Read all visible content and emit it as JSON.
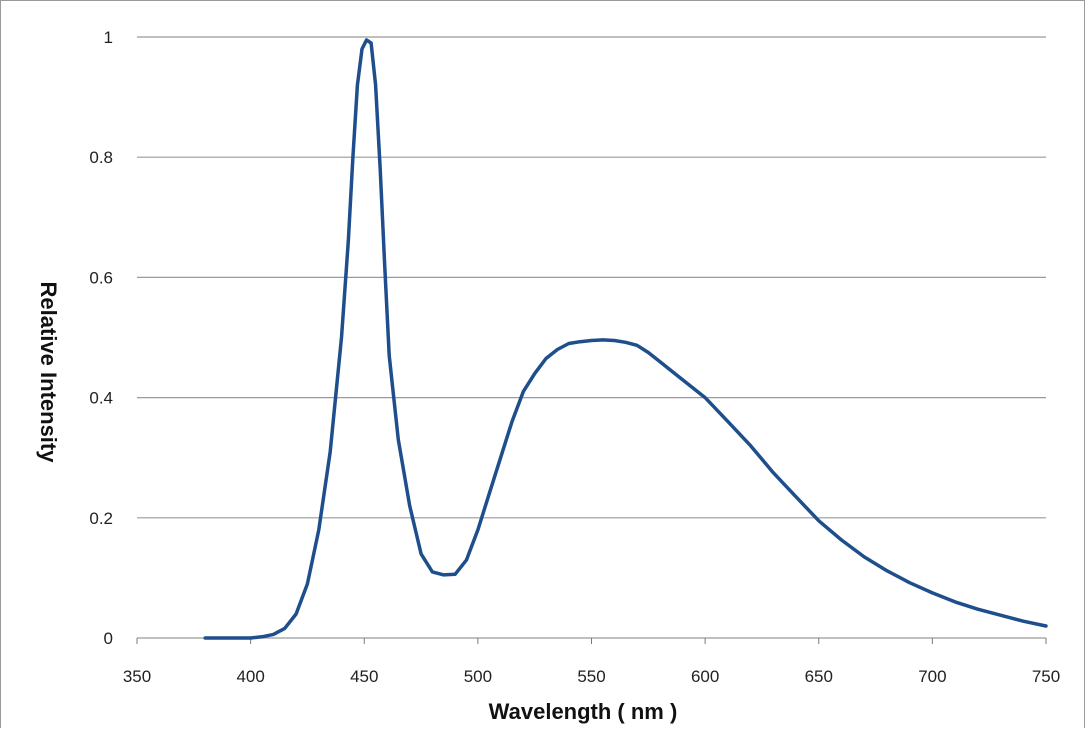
{
  "chart_data": {
    "type": "line",
    "title": "",
    "xlabel": "Wavelength ( nm )",
    "ylabel": "Relative  Intensity",
    "xlim": [
      350,
      750
    ],
    "ylim": [
      0,
      1
    ],
    "x_ticks": [
      "350",
      "400",
      "450",
      "500",
      "550",
      "600",
      "650",
      "700",
      "750"
    ],
    "y_ticks": [
      "0",
      "0.2",
      "0.4",
      "0.6",
      "0.8",
      "1"
    ],
    "grid": "horizontal",
    "legend": "none",
    "series": [
      {
        "color": "#1f4e8c",
        "x": [
          380,
          400,
          405,
          410,
          415,
          420,
          425,
          430,
          435,
          440,
          443,
          445,
          447,
          449,
          451,
          453,
          455,
          457,
          459,
          461,
          465,
          470,
          475,
          480,
          485,
          490,
          495,
          500,
          505,
          510,
          515,
          520,
          525,
          530,
          535,
          540,
          545,
          550,
          555,
          560,
          565,
          570,
          575,
          580,
          590,
          600,
          610,
          620,
          630,
          640,
          650,
          660,
          670,
          680,
          690,
          700,
          710,
          720,
          730,
          740,
          750
        ],
        "y": [
          0.0,
          0.0,
          0.002,
          0.006,
          0.016,
          0.04,
          0.09,
          0.18,
          0.31,
          0.5,
          0.66,
          0.8,
          0.92,
          0.98,
          0.995,
          0.99,
          0.92,
          0.78,
          0.62,
          0.47,
          0.33,
          0.22,
          0.14,
          0.11,
          0.105,
          0.106,
          0.13,
          0.18,
          0.24,
          0.3,
          0.36,
          0.41,
          0.44,
          0.465,
          0.48,
          0.49,
          0.493,
          0.495,
          0.496,
          0.495,
          0.492,
          0.487,
          0.475,
          0.46,
          0.43,
          0.4,
          0.36,
          0.32,
          0.275,
          0.235,
          0.195,
          0.163,
          0.135,
          0.112,
          0.092,
          0.075,
          0.06,
          0.048,
          0.038,
          0.028,
          0.02
        ]
      }
    ]
  }
}
